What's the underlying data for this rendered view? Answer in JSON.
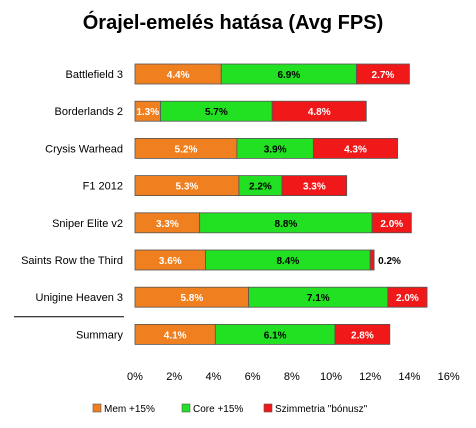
{
  "chart_data": {
    "type": "bar",
    "orientation": "horizontal",
    "stacked": true,
    "title": "Órajel-emelés hatása (Avg FPS)",
    "categories": [
      "Battlefield 3",
      "Borderlands 2",
      "Crysis Warhead",
      "F1 2012",
      "Sniper Elite v2",
      "Saints Row the Third",
      "Unigine Heaven 3",
      "Summary"
    ],
    "series": [
      {
        "name": "Mem +15%",
        "color": "#F07F1F",
        "values": [
          4.4,
          1.3,
          5.2,
          5.3,
          3.3,
          3.6,
          5.8,
          4.1
        ],
        "labels": [
          "4.4%",
          "1.3%",
          "5.2%",
          "5.3%",
          "3.3%",
          "3.6%",
          "5.8%",
          "4.1%"
        ]
      },
      {
        "name": "Core +15%",
        "color": "#22E022",
        "values": [
          6.9,
          5.7,
          3.9,
          2.2,
          8.8,
          8.4,
          7.1,
          6.1
        ],
        "labels": [
          "6.9%",
          "5.7%",
          "3.9%",
          "2.2%",
          "8.8%",
          "8.4%",
          "7.1%",
          "6.1%"
        ]
      },
      {
        "name": "Szimmetria \"bónusz\"",
        "color": "#F01818",
        "values": [
          2.7,
          4.8,
          4.3,
          3.3,
          2.0,
          0.2,
          2.0,
          2.8
        ],
        "labels": [
          "2.7%",
          "4.8%",
          "4.3%",
          "3.3%",
          "2.0%",
          "0.2%",
          "2.0%",
          "2.8%"
        ]
      }
    ],
    "x_ticks": [
      "0%",
      "2%",
      "4%",
      "6%",
      "8%",
      "10%",
      "12%",
      "14%",
      "16%"
    ],
    "xlim": [
      0,
      16
    ],
    "grid": false,
    "legend": "bottom",
    "separator_before_last": true
  }
}
